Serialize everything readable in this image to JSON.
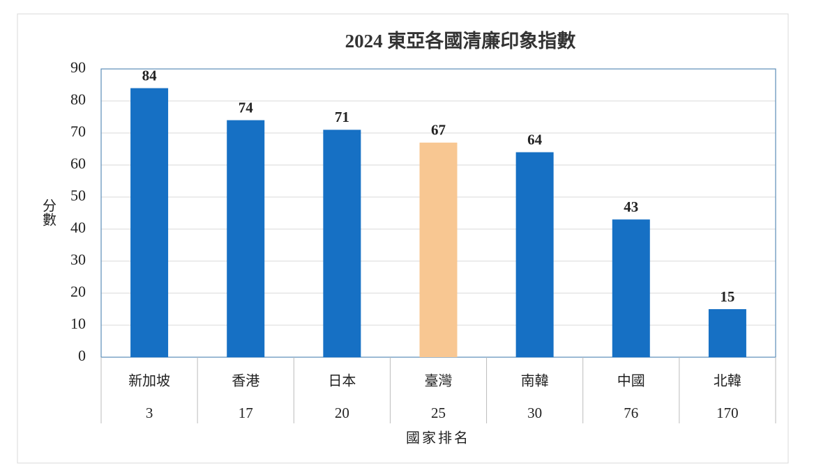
{
  "chart_data": {
    "type": "bar",
    "title": "2024 東亞各國清廉印象指數",
    "y_label": "分數",
    "x_label": "國家排名",
    "categories": [
      "新加坡",
      "香港",
      "日本",
      "臺灣",
      "南韓",
      "中國",
      "北韓"
    ],
    "ranks": [
      3,
      17,
      20,
      25,
      30,
      76,
      170
    ],
    "values": [
      84,
      74,
      71,
      67,
      64,
      43,
      15
    ],
    "colors": [
      "#1670c4",
      "#1670c4",
      "#1670c4",
      "#f8c792",
      "#1670c4",
      "#1670c4",
      "#1670c4"
    ],
    "ylim": [
      0,
      90
    ],
    "yticks": [
      0,
      10,
      20,
      30,
      40,
      50,
      60,
      70,
      80,
      90
    ],
    "grid": true
  }
}
